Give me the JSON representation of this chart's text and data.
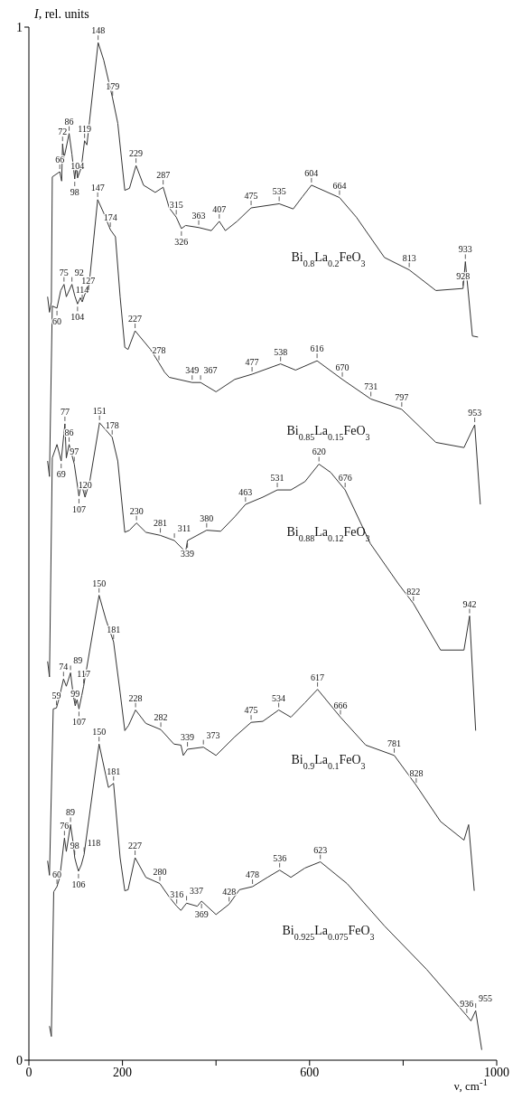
{
  "chart_data": {
    "type": "line",
    "xlabel": "ν, cm$^{-1}$",
    "ylabel": "I, rel. units",
    "xlim": [
      0,
      1000
    ],
    "xticks": [
      0,
      200,
      {
        "value": 400,
        "label": null
      },
      600,
      {
        "value": 800,
        "label": null
      },
      1000
    ],
    "ylim": [
      0,
      1
    ],
    "yticks": [
      0,
      1
    ],
    "grid": false,
    "legend": false,
    "marker": "none",
    "line_style": "solid",
    "series": [
      {
        "name": "Bi$_{0.8}$La$_{0.2}$FeO$_{3}$",
        "color": "#333333",
        "x": [
          40,
          44,
          48,
          50,
          66,
          70,
          72,
          75,
          86,
          92,
          98,
          101,
          104,
          112,
          119,
          124,
          148,
          160,
          179,
          190,
          205,
          215,
          229,
          245,
          270,
          287,
          300,
          315,
          326,
          335,
          363,
          390,
          407,
          420,
          445,
          475,
          535,
          565,
          585,
          604,
          664,
          700,
          760,
          813,
          870,
          928,
          933,
          948,
          960
        ],
        "values": [
          0.739,
          0.724,
          0.734,
          0.855,
          0.86,
          0.851,
          0.887,
          0.873,
          0.897,
          0.877,
          0.853,
          0.866,
          0.854,
          0.864,
          0.89,
          0.886,
          0.985,
          0.968,
          0.931,
          0.907,
          0.842,
          0.844,
          0.866,
          0.847,
          0.84,
          0.845,
          0.825,
          0.816,
          0.805,
          0.808,
          0.806,
          0.803,
          0.812,
          0.803,
          0.812,
          0.825,
          0.829,
          0.824,
          0.836,
          0.847,
          0.835,
          0.816,
          0.777,
          0.765,
          0.745,
          0.747,
          0.773,
          0.701,
          0.7
        ]
      },
      {
        "name": "Bi$_{0.85}$La$_{0.15}$FeO$_{3}$",
        "color": "#333333",
        "x": [
          40,
          44,
          50,
          60,
          68,
          75,
          80,
          92,
          98,
          104,
          110,
          114,
          120,
          127,
          147,
          160,
          174,
          185,
          195,
          205,
          212,
          227,
          260,
          278,
          290,
          300,
          349,
          367,
          400,
          440,
          477,
          538,
          570,
          616,
          670,
          731,
          797,
          870,
          930,
          953,
          965
        ],
        "values": [
          0.58,
          0.565,
          0.73,
          0.728,
          0.745,
          0.751,
          0.739,
          0.751,
          0.74,
          0.732,
          0.738,
          0.734,
          0.742,
          0.743,
          0.833,
          0.82,
          0.804,
          0.797,
          0.739,
          0.69,
          0.688,
          0.706,
          0.688,
          0.675,
          0.666,
          0.661,
          0.656,
          0.656,
          0.647,
          0.659,
          0.664,
          0.674,
          0.668,
          0.677,
          0.659,
          0.64,
          0.63,
          0.598,
          0.593,
          0.615,
          0.538
        ]
      },
      {
        "name": "Bi$_{0.88}$La$_{0.12}$FeO$_{3}$",
        "color": "#333333",
        "x": [
          40,
          44,
          50,
          60,
          69,
          77,
          80,
          86,
          97,
          107,
          112,
          120,
          130,
          151,
          178,
          190,
          205,
          215,
          230,
          250,
          281,
          311,
          335,
          339,
          380,
          410,
          440,
          463,
          500,
          531,
          560,
          590,
          620,
          645,
          676,
          730,
          790,
          822,
          880,
          930,
          942,
          955
        ],
        "values": [
          0.386,
          0.371,
          0.583,
          0.596,
          0.58,
          0.616,
          0.583,
          0.596,
          0.577,
          0.546,
          0.558,
          0.545,
          0.56,
          0.617,
          0.603,
          0.58,
          0.511,
          0.513,
          0.52,
          0.511,
          0.508,
          0.503,
          0.492,
          0.503,
          0.513,
          0.512,
          0.526,
          0.538,
          0.545,
          0.552,
          0.552,
          0.56,
          0.577,
          0.569,
          0.552,
          0.5,
          0.461,
          0.442,
          0.397,
          0.397,
          0.43,
          0.319
        ]
      },
      {
        "name": "Bi$_{0.9}$La$_{0.1}$FeO$_{3}$",
        "color": "#333333",
        "x": [
          40,
          44,
          52,
          59,
          65,
          74,
          80,
          89,
          95,
          99,
          103,
          107,
          113,
          117,
          150,
          165,
          181,
          195,
          205,
          213,
          228,
          250,
          282,
          310,
          325,
          330,
          339,
          373,
          400,
          440,
          475,
          500,
          534,
          560,
          590,
          617,
          666,
          720,
          781,
          828,
          880,
          930,
          940,
          952
        ],
        "values": [
          0.193,
          0.179,
          0.34,
          0.341,
          0.351,
          0.369,
          0.362,
          0.375,
          0.353,
          0.343,
          0.349,
          0.34,
          0.353,
          0.362,
          0.45,
          0.426,
          0.405,
          0.356,
          0.319,
          0.324,
          0.339,
          0.326,
          0.32,
          0.306,
          0.305,
          0.295,
          0.301,
          0.303,
          0.295,
          0.313,
          0.327,
          0.328,
          0.339,
          0.332,
          0.346,
          0.359,
          0.332,
          0.305,
          0.295,
          0.266,
          0.231,
          0.213,
          0.228,
          0.164
        ]
      },
      {
        "name": "Bi$_{0.925}$La$_{0.075}$FeO$_{3}$",
        "color": "#333333",
        "x": [
          44,
          48,
          53,
          60,
          66,
          76,
          80,
          89,
          95,
          98,
          102,
          106,
          112,
          118,
          150,
          170,
          181,
          195,
          205,
          212,
          227,
          250,
          280,
          300,
          316,
          325,
          337,
          360,
          369,
          400,
          428,
          450,
          478,
          510,
          536,
          560,
          590,
          623,
          680,
          760,
          850,
          936,
          945,
          955,
          968
        ],
        "values": [
          0.033,
          0.023,
          0.163,
          0.168,
          0.177,
          0.215,
          0.202,
          0.228,
          0.209,
          0.196,
          0.189,
          0.183,
          0.189,
          0.199,
          0.306,
          0.264,
          0.268,
          0.196,
          0.164,
          0.165,
          0.196,
          0.177,
          0.171,
          0.158,
          0.149,
          0.145,
          0.152,
          0.149,
          0.154,
          0.141,
          0.151,
          0.165,
          0.168,
          0.177,
          0.184,
          0.177,
          0.186,
          0.192,
          0.171,
          0.13,
          0.088,
          0.043,
          0.038,
          0.048,
          0.01
        ]
      }
    ],
    "annotations": [
      {
        "text": "66",
        "x": 66,
        "y": 0.86
      },
      {
        "text": "72",
        "x": 72,
        "y": 0.887
      },
      {
        "text": "86",
        "x": 86,
        "y": 0.897
      },
      {
        "text": "98",
        "x": 98,
        "y": 0.853
      },
      {
        "text": "104",
        "x": 104,
        "y": 0.854
      },
      {
        "text": "119",
        "x": 119,
        "y": 0.89
      },
      {
        "text": "148",
        "x": 148,
        "y": 0.985
      },
      {
        "text": "179",
        "x": 179,
        "y": 0.931
      },
      {
        "text": "229",
        "x": 229,
        "y": 0.866
      },
      {
        "text": "287",
        "x": 287,
        "y": 0.845
      },
      {
        "text": "315",
        "x": 315,
        "y": 0.816
      },
      {
        "text": "326",
        "x": 326,
        "y": 0.805
      },
      {
        "text": "363",
        "x": 363,
        "y": 0.806
      },
      {
        "text": "407",
        "x": 407,
        "y": 0.812
      },
      {
        "text": "475",
        "x": 475,
        "y": 0.825
      },
      {
        "text": "535",
        "x": 535,
        "y": 0.829
      },
      {
        "text": "604",
        "x": 604,
        "y": 0.847
      },
      {
        "text": "664",
        "x": 664,
        "y": 0.835
      },
      {
        "text": "813",
        "x": 813,
        "y": 0.765
      },
      {
        "text": "928",
        "x": 928,
        "y": 0.747
      },
      {
        "text": "933",
        "x": 933,
        "y": 0.773
      },
      {
        "text": "60",
        "x": 60,
        "y": 0.728
      },
      {
        "text": "75",
        "x": 75,
        "y": 0.751
      },
      {
        "text": "92",
        "x": 92,
        "y": 0.751
      },
      {
        "text": "104",
        "x": 104,
        "y": 0.732
      },
      {
        "text": "114",
        "x": 114,
        "y": 0.734
      },
      {
        "text": "127",
        "x": 127,
        "y": 0.743
      },
      {
        "text": "147",
        "x": 147,
        "y": 0.833
      },
      {
        "text": "174",
        "x": 174,
        "y": 0.804
      },
      {
        "text": "227",
        "x": 227,
        "y": 0.706
      },
      {
        "text": "278",
        "x": 278,
        "y": 0.675
      },
      {
        "text": "349",
        "x": 349,
        "y": 0.656
      },
      {
        "text": "367",
        "x": 367,
        "y": 0.656
      },
      {
        "text": "477",
        "x": 477,
        "y": 0.664
      },
      {
        "text": "538",
        "x": 538,
        "y": 0.674
      },
      {
        "text": "616",
        "x": 616,
        "y": 0.677
      },
      {
        "text": "670",
        "x": 670,
        "y": 0.659
      },
      {
        "text": "731",
        "x": 731,
        "y": 0.64
      },
      {
        "text": "797",
        "x": 797,
        "y": 0.63
      },
      {
        "text": "953",
        "x": 953,
        "y": 0.615
      },
      {
        "text": "69",
        "x": 69,
        "y": 0.58
      },
      {
        "text": "77",
        "x": 77,
        "y": 0.616
      },
      {
        "text": "86",
        "x": 86,
        "y": 0.596
      },
      {
        "text": "97",
        "x": 97,
        "y": 0.577
      },
      {
        "text": "107",
        "x": 107,
        "y": 0.546
      },
      {
        "text": "120",
        "x": 120,
        "y": 0.545
      },
      {
        "text": "151",
        "x": 151,
        "y": 0.617
      },
      {
        "text": "178",
        "x": 178,
        "y": 0.603
      },
      {
        "text": "230",
        "x": 230,
        "y": 0.52
      },
      {
        "text": "281",
        "x": 281,
        "y": 0.508
      },
      {
        "text": "311",
        "x": 311,
        "y": 0.503
      },
      {
        "text": "339",
        "x": 339,
        "y": 0.503
      },
      {
        "text": "380",
        "x": 380,
        "y": 0.513
      },
      {
        "text": "463",
        "x": 463,
        "y": 0.538
      },
      {
        "text": "531",
        "x": 531,
        "y": 0.552
      },
      {
        "text": "620",
        "x": 620,
        "y": 0.577
      },
      {
        "text": "676",
        "x": 676,
        "y": 0.552
      },
      {
        "text": "822",
        "x": 822,
        "y": 0.442
      },
      {
        "text": "942",
        "x": 942,
        "y": 0.43
      },
      {
        "text": "59",
        "x": 59,
        "y": 0.341
      },
      {
        "text": "74",
        "x": 74,
        "y": 0.369
      },
      {
        "text": "89",
        "x": 89,
        "y": 0.375
      },
      {
        "text": "99",
        "x": 99,
        "y": 0.343
      },
      {
        "text": "107",
        "x": 107,
        "y": 0.34
      },
      {
        "text": "117",
        "x": 117,
        "y": 0.362
      },
      {
        "text": "150",
        "x": 150,
        "y": 0.45
      },
      {
        "text": "181",
        "x": 181,
        "y": 0.405
      },
      {
        "text": "228",
        "x": 228,
        "y": 0.339
      },
      {
        "text": "282",
        "x": 282,
        "y": 0.32
      },
      {
        "text": "339",
        "x": 339,
        "y": 0.301
      },
      {
        "text": "373",
        "x": 373,
        "y": 0.303
      },
      {
        "text": "475",
        "x": 475,
        "y": 0.327
      },
      {
        "text": "534",
        "x": 534,
        "y": 0.339
      },
      {
        "text": "617",
        "x": 617,
        "y": 0.359
      },
      {
        "text": "666",
        "x": 666,
        "y": 0.332
      },
      {
        "text": "781",
        "x": 781,
        "y": 0.295
      },
      {
        "text": "828",
        "x": 828,
        "y": 0.266
      },
      {
        "text": "60",
        "x": 60,
        "y": 0.168
      },
      {
        "text": "76",
        "x": 76,
        "y": 0.215
      },
      {
        "text": "89",
        "x": 89,
        "y": 0.228
      },
      {
        "text": "98",
        "x": 98,
        "y": 0.196
      },
      {
        "text": "106",
        "x": 106,
        "y": 0.183
      },
      {
        "text": "118",
        "x": 118,
        "y": 0.199
      },
      {
        "text": "150",
        "x": 150,
        "y": 0.306
      },
      {
        "text": "181",
        "x": 181,
        "y": 0.268
      },
      {
        "text": "227",
        "x": 227,
        "y": 0.196
      },
      {
        "text": "280",
        "x": 280,
        "y": 0.171
      },
      {
        "text": "316",
        "x": 316,
        "y": 0.149
      },
      {
        "text": "337",
        "x": 337,
        "y": 0.152
      },
      {
        "text": "369",
        "x": 369,
        "y": 0.154
      },
      {
        "text": "428",
        "x": 428,
        "y": 0.151
      },
      {
        "text": "478",
        "x": 478,
        "y": 0.168
      },
      {
        "text": "536",
        "x": 536,
        "y": 0.184
      },
      {
        "text": "623",
        "x": 623,
        "y": 0.192
      },
      {
        "text": "936",
        "x": 936,
        "y": 0.043
      },
      {
        "text": "955",
        "x": 955,
        "y": 0.048
      }
    ]
  }
}
